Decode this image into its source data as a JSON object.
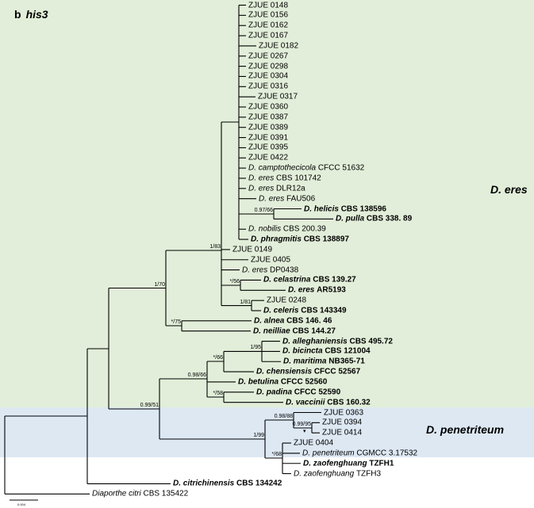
{
  "title": {
    "panel": "b",
    "gene": "his3"
  },
  "clades": {
    "eres": "D. eres",
    "penetriteum": "D. penetriteum"
  },
  "scale_bar": "0.004",
  "colors": {
    "eres_band": "#e2eed9",
    "penetriteum_band": "#dde8f3"
  },
  "leaves": [
    {
      "species": "",
      "strain": "ZJUE 0148",
      "bold": false
    },
    {
      "species": "",
      "strain": "ZJUE 0156",
      "bold": false
    },
    {
      "species": "",
      "strain": "ZJUE 0162",
      "bold": false
    },
    {
      "species": "",
      "strain": "ZJUE 0167",
      "bold": false
    },
    {
      "species": "",
      "strain": "ZJUE 0182",
      "bold": false
    },
    {
      "species": "",
      "strain": "ZJUE 0267",
      "bold": false
    },
    {
      "species": "",
      "strain": "ZJUE 0298",
      "bold": false
    },
    {
      "species": "",
      "strain": "ZJUE 0304",
      "bold": false
    },
    {
      "species": "",
      "strain": "ZJUE 0316",
      "bold": false
    },
    {
      "species": "",
      "strain": "ZJUE 0317",
      "bold": false
    },
    {
      "species": "",
      "strain": "ZJUE 0360",
      "bold": false
    },
    {
      "species": "",
      "strain": "ZJUE 0387",
      "bold": false
    },
    {
      "species": "",
      "strain": "ZJUE 0389",
      "bold": false
    },
    {
      "species": "",
      "strain": "ZJUE 0391",
      "bold": false
    },
    {
      "species": "",
      "strain": "ZJUE 0395",
      "bold": false
    },
    {
      "species": "",
      "strain": "ZJUE 0422",
      "bold": false
    },
    {
      "species": "D. camptothecicola",
      "strain": "CFCC 51632",
      "bold": false
    },
    {
      "species": "D. eres",
      "strain": "CBS 101742",
      "bold": false
    },
    {
      "species": "D. eres",
      "strain": "DLR12a",
      "bold": false
    },
    {
      "species": "D. eres",
      "strain": "FAU506",
      "bold": false
    },
    {
      "species": "D. helicis",
      "strain": "CBS 138596",
      "bold": true
    },
    {
      "species": "D. pulla",
      "strain": "CBS 338. 89",
      "bold": true
    },
    {
      "species": "D. nobilis",
      "strain": "CBS 200.39",
      "bold": false
    },
    {
      "species": "D. phragmitis",
      "strain": "CBS 138897",
      "bold": true
    },
    {
      "species": "",
      "strain": "ZJUE 0149",
      "bold": false
    },
    {
      "species": "",
      "strain": "ZJUE 0405",
      "bold": false
    },
    {
      "species": "D. eres",
      "strain": "DP0438",
      "bold": false
    },
    {
      "species": "D. celastrina",
      "strain": "CBS 139.27",
      "bold": true
    },
    {
      "species": "D. eres",
      "strain": "AR5193",
      "bold": true
    },
    {
      "species": "",
      "strain": "ZJUE 0248",
      "bold": false
    },
    {
      "species": "D. celeris",
      "strain": "CBS 143349",
      "bold": true
    },
    {
      "species": "D. alnea",
      "strain": "CBS 146. 46",
      "bold": true
    },
    {
      "species": "D. neilliae",
      "strain": "CBS 144.27",
      "bold": true
    },
    {
      "species": "D. alleghaniensis",
      "strain": "CBS 495.72",
      "bold": true
    },
    {
      "species": "D. bicincta",
      "strain": "CBS 121004",
      "bold": true
    },
    {
      "species": "D. maritima",
      "strain": "NB365-71",
      "bold": true
    },
    {
      "species": "D. chensiensis",
      "strain": "CFCC 52567",
      "bold": true
    },
    {
      "species": "D. betulina",
      "strain": "CFCC 52560",
      "bold": true
    },
    {
      "species": "D. padina",
      "strain": "CFCC 52590",
      "bold": true
    },
    {
      "species": "D. vaccinii",
      "strain": "CBS 160.32",
      "bold": true
    },
    {
      "species": "",
      "strain": "ZJUE 0363",
      "bold": false
    },
    {
      "species": "",
      "strain": "ZJUE 0394",
      "bold": false
    },
    {
      "species": "",
      "strain": "ZJUE 0414",
      "bold": false
    },
    {
      "species": "",
      "strain": "ZJUE 0404",
      "bold": false
    },
    {
      "species": "D. penetriteum",
      "strain": "CGMCC 3.17532",
      "bold": false
    },
    {
      "species": "D. zaofenghuang",
      "strain": "TZFH1",
      "bold": true
    },
    {
      "species": "D. zaofenghuang",
      "strain": "TZFH3",
      "bold": false
    },
    {
      "species": "D. citrichinensis",
      "strain": "CBS 134242",
      "bold": true
    },
    {
      "species": "Diaporthe citri",
      "strain": "CBS 135422",
      "bold": false
    }
  ],
  "supports": {
    "B": "1/83",
    "H": "0.97/66",
    "C": "*/56",
    "N81": "1/81",
    "E": "1/70",
    "D": "*/75",
    "F": "1/95",
    "G": "*/66",
    "J": "0.98/66",
    "I": "*/58",
    "O": "0.99/51",
    "L": "0.98/88",
    "K": "0.99/95",
    "N": "1/99",
    "M": "*/68"
  },
  "arrow_glyph": "▾"
}
